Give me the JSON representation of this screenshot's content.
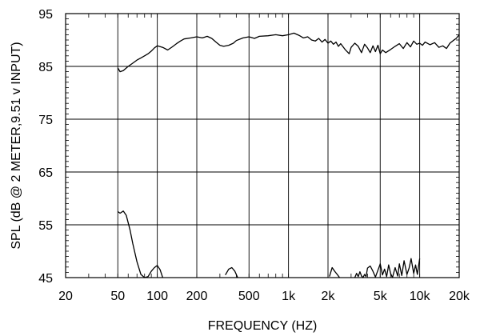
{
  "chart_data": {
    "type": "line",
    "title": "",
    "xlabel": "FREQUENCY  (HZ)",
    "ylabel": "SPL (dB @ 2 METER,9.51 v  INPUT)",
    "xscale": "log",
    "xlim": [
      20,
      20000
    ],
    "ylim": [
      45,
      95
    ],
    "grid": true,
    "legend": "none",
    "line_color": "#000000",
    "x_ticks": [
      {
        "value": 20,
        "label": "20"
      },
      {
        "value": 50,
        "label": "50"
      },
      {
        "value": 100,
        "label": "100"
      },
      {
        "value": 200,
        "label": "200"
      },
      {
        "value": 500,
        "label": "500"
      },
      {
        "value": 1000,
        "label": "1k"
      },
      {
        "value": 2000,
        "label": "2k"
      },
      {
        "value": 5000,
        "label": "5k"
      },
      {
        "value": 10000,
        "label": "10k"
      },
      {
        "value": 20000,
        "label": "20k"
      }
    ],
    "y_ticks": [
      {
        "value": 95,
        "label": "95"
      },
      {
        "value": 85,
        "label": "85"
      },
      {
        "value": 75,
        "label": "75"
      },
      {
        "value": 65,
        "label": "65"
      },
      {
        "value": 55,
        "label": "55"
      },
      {
        "value": 45,
        "label": "45"
      }
    ],
    "series": [
      {
        "x": [
          50,
          52,
          55,
          60,
          65,
          70,
          75,
          80,
          85,
          90,
          95,
          100,
          110,
          120,
          130,
          140,
          150,
          160,
          180,
          200,
          220,
          240,
          260,
          280,
          300,
          320,
          350,
          380,
          400,
          450,
          500,
          550,
          600,
          700,
          800,
          900,
          1000,
          1100,
          1200,
          1300,
          1400,
          1500,
          1600,
          1700,
          1800,
          1900,
          2000,
          2100,
          2200,
          2300,
          2400,
          2500,
          2700,
          2900,
          3000,
          3200,
          3400,
          3600,
          3800,
          4000,
          4200,
          4400,
          4600,
          4800,
          5000,
          5200,
          5500,
          6000,
          6500,
          7000,
          7500,
          8000,
          8500,
          9000,
          9500,
          10000,
          10500,
          11000,
          12000,
          13000,
          14000,
          15000,
          16000,
          17000,
          18000,
          19000,
          20000
        ],
        "y": [
          84.7,
          84.0,
          84.2,
          85.0,
          85.6,
          86.2,
          86.6,
          87.0,
          87.4,
          87.9,
          88.5,
          88.9,
          88.6,
          88.1,
          88.7,
          89.3,
          89.8,
          90.2,
          90.4,
          90.6,
          90.4,
          90.7,
          90.3,
          89.6,
          89.0,
          88.8,
          89.0,
          89.4,
          89.9,
          90.4,
          90.6,
          90.3,
          90.7,
          90.8,
          91.0,
          90.8,
          91.0,
          91.3,
          90.9,
          90.4,
          90.6,
          90.0,
          89.8,
          90.3,
          89.6,
          90.1,
          89.4,
          89.8,
          89.2,
          89.6,
          88.8,
          89.3,
          88.2,
          87.4,
          88.6,
          89.4,
          88.8,
          87.6,
          89.2,
          88.5,
          87.6,
          88.9,
          87.8,
          89.0,
          87.4,
          88.1,
          87.6,
          88.2,
          88.8,
          89.3,
          88.4,
          89.5,
          88.7,
          89.8,
          89.2,
          89.4,
          89.0,
          89.6,
          89.1,
          89.5,
          88.6,
          88.9,
          88.4,
          89.4,
          89.9,
          90.3,
          91.0
        ]
      },
      {
        "x": [
          50,
          52,
          55,
          58,
          62,
          65,
          70,
          75,
          80,
          85,
          90,
          95,
          100,
          105,
          110
        ],
        "y": [
          57.5,
          57.2,
          57.6,
          56.8,
          54.0,
          51.5,
          48.0,
          45.6,
          45.0,
          45.2,
          46.2,
          46.9,
          47.3,
          46.5,
          45.0
        ]
      },
      {
        "x": [
          330,
          350,
          370,
          390,
          410
        ],
        "y": [
          45.5,
          46.6,
          46.9,
          46.2,
          45.0
        ]
      },
      {
        "x": [
          2050,
          2150,
          2250,
          2350,
          2450
        ],
        "y": [
          45.2,
          46.9,
          46.2,
          45.6,
          45.0
        ]
      },
      {
        "x": [
          3200,
          3300,
          3400,
          3500,
          3600,
          3700,
          3800,
          3900,
          4000,
          4200,
          4400,
          4600,
          4800,
          5000,
          5200,
          5400,
          5600,
          5800,
          6000,
          6200,
          6500,
          6800,
          7000,
          7300,
          7600,
          8000,
          8300,
          8600,
          9000,
          9300,
          9600,
          10000
        ],
        "y": [
          45.0,
          45.8,
          45.2,
          46.1,
          45.3,
          45.0,
          45.6,
          45.2,
          46.8,
          47.2,
          46.2,
          45.1,
          46.4,
          47.6,
          45.5,
          46.6,
          45.2,
          47.4,
          45.8,
          45.0,
          46.9,
          45.3,
          47.6,
          45.4,
          48.2,
          45.6,
          46.8,
          48.6,
          45.8,
          47.4,
          45.6,
          48.6
        ]
      }
    ]
  }
}
